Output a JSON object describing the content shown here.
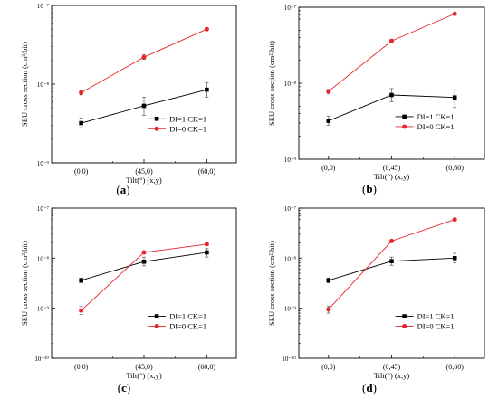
{
  "chart_data": [
    {
      "panel": "a",
      "type": "line",
      "caption": "(a)",
      "xlabel": "Tilt(°) (x,y)",
      "ylabel": "SEU cross section (cm²/bit)",
      "categories": [
        "(0,0)",
        "(45,0)",
        "(60,0)"
      ],
      "yscale": "log",
      "ylim": [
        1e-09,
        1e-07
      ],
      "yticks": [
        1e-09,
        1e-08,
        1e-07
      ],
      "yticklabels": [
        "10⁻⁹",
        "10⁻⁸",
        "10⁻⁷"
      ],
      "legend_position": "lower-right",
      "series": [
        {
          "name": "DI=1 CK=1",
          "color": "#000000",
          "marker": "square",
          "values": [
            3.2e-09,
            5.3e-09,
            8.5e-09
          ],
          "err_low": [
            2.8e-09,
            4e-09,
            6.8e-09
          ],
          "err_high": [
            3.7e-09,
            6.8e-09,
            1.05e-08
          ]
        },
        {
          "name": "DI=0 CK=1",
          "color": "#e8262a",
          "marker": "circle",
          "values": [
            7.8e-09,
            2.2e-08,
            5e-08
          ],
          "err_low": [
            7.3e-09,
            2.07e-08,
            4.8e-08
          ],
          "err_high": [
            8.3e-09,
            2.35e-08,
            5.2e-08
          ]
        }
      ]
    },
    {
      "panel": "b",
      "type": "line",
      "caption": "(b)",
      "xlabel": "Tilt(°) (x,y)",
      "ylabel": "SEU cross section (cm²/bit)",
      "categories": [
        "(0,0)",
        "(0,45)",
        "(0,60)"
      ],
      "yscale": "log",
      "ylim": [
        1e-09,
        1e-07
      ],
      "yticks": [
        1e-09,
        1e-08,
        1e-07
      ],
      "yticklabels": [
        "10⁻⁹",
        "10⁻⁸",
        "10⁻⁷"
      ],
      "legend_position": "lower-right",
      "series": [
        {
          "name": "DI=1 CK=1",
          "color": "#000000",
          "marker": "square",
          "values": [
            3.2e-09,
            7e-09,
            6.5e-09
          ],
          "err_low": [
            2.8e-09,
            5.7e-09,
            4.8e-09
          ],
          "err_high": [
            3.7e-09,
            8.5e-09,
            8.2e-09
          ]
        },
        {
          "name": "DI=0 CK=1",
          "color": "#e8262a",
          "marker": "circle",
          "values": [
            7.8e-09,
            3.6e-08,
            8.2e-08
          ],
          "err_low": [
            7.3e-09,
            3.4e-08,
            7.9e-08
          ],
          "err_high": [
            8.3e-09,
            3.8e-08,
            8.5e-08
          ]
        }
      ]
    },
    {
      "panel": "c",
      "type": "line",
      "caption": "(c)",
      "xlabel": "Tilt(°) (x,y)",
      "ylabel": "SEU cross section (cm²/bit)",
      "categories": [
        "(0,0)",
        "(45,0)",
        "(60,0)"
      ],
      "yscale": "log",
      "ylim": [
        1e-10,
        1e-07
      ],
      "yticks": [
        1e-10,
        1e-09,
        1e-08,
        1e-07
      ],
      "yticklabels": [
        "10⁻¹⁰",
        "10⁻⁹",
        "10⁻⁸",
        "10⁻⁷"
      ],
      "legend_position": "lower-right",
      "series": [
        {
          "name": "DI=1 CK=1",
          "color": "#000000",
          "marker": "square",
          "values": [
            3.6e-09,
            8.5e-09,
            1.3e-08
          ],
          "err_low": [
            3.2e-09,
            7e-09,
            1.05e-08
          ],
          "err_high": [
            4e-09,
            1.05e-08,
            1.55e-08
          ]
        },
        {
          "name": "DI=0 CK=1",
          "color": "#e8262a",
          "marker": "circle",
          "values": [
            9e-10,
            1.3e-08,
            1.9e-08
          ],
          "err_low": [
            7.5e-10,
            1.22e-08,
            1.8e-08
          ],
          "err_high": [
            1.08e-09,
            1.38e-08,
            2e-08
          ]
        }
      ]
    },
    {
      "panel": "d",
      "type": "line",
      "caption": "(d)",
      "xlabel": "Tilt(°) (x,y)",
      "ylabel": "SEU cross section (cm²/bit)",
      "categories": [
        "(0,0)",
        "(0,45)",
        "(0,60)"
      ],
      "yscale": "log",
      "ylim": [
        1e-10,
        1e-07
      ],
      "yticks": [
        1e-10,
        1e-09,
        1e-08,
        1e-07
      ],
      "yticklabels": [
        "10⁻¹⁰",
        "10⁻⁹",
        "10⁻⁸",
        "10⁻⁷"
      ],
      "legend_position": "lower-right",
      "series": [
        {
          "name": "DI=1 CK=1",
          "color": "#000000",
          "marker": "square",
          "values": [
            3.6e-09,
            8.7e-09,
            1e-08
          ],
          "err_low": [
            3.2e-09,
            7.2e-09,
            8e-09
          ],
          "err_high": [
            4e-09,
            1.05e-08,
            1.25e-08
          ]
        },
        {
          "name": "DI=0 CK=1",
          "color": "#e8262a",
          "marker": "circle",
          "values": [
            9.5e-10,
            2.2e-08,
            5.9e-08
          ],
          "err_low": [
            8e-10,
            2.1e-08,
            5.7e-08
          ],
          "err_high": [
            1.1e-09,
            2.3e-08,
            6.1e-08
          ]
        }
      ]
    }
  ]
}
